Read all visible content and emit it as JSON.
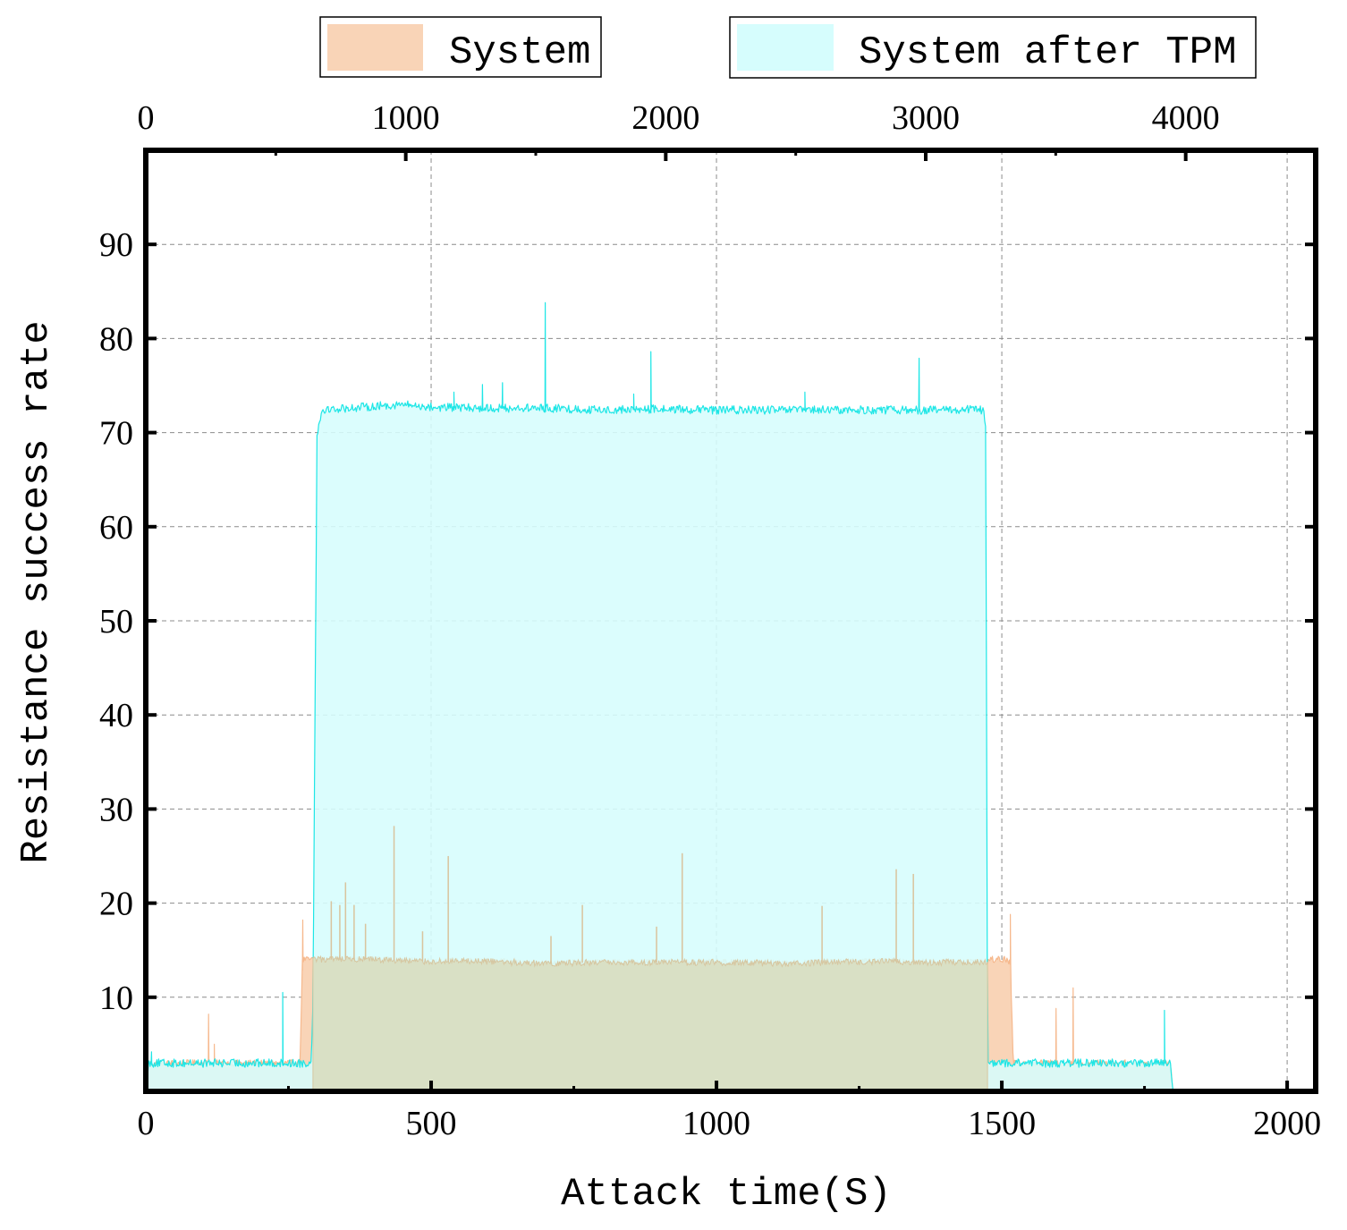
{
  "chart_data": {
    "type": "area",
    "title": "",
    "xlabel": "Attack time(S)",
    "ylabel": "Resistance success rate",
    "xlim": [
      0,
      2050
    ],
    "ylim": [
      0,
      100
    ],
    "x2lim": [
      0,
      4500
    ],
    "x_ticks": [
      0,
      500,
      1000,
      1500,
      2000
    ],
    "x2_ticks": [
      0,
      1000,
      2000,
      3000,
      4000
    ],
    "y_ticks": [
      10,
      20,
      30,
      40,
      50,
      60,
      70,
      80,
      90
    ],
    "x_tick_labels": [
      "0",
      "500",
      "1000",
      "1500",
      "2000"
    ],
    "x2_tick_labels": [
      "0",
      "1000",
      "2000",
      "3000",
      "4000"
    ],
    "y_tick_labels": [
      "10",
      "20",
      "30",
      "40",
      "50",
      "60",
      "70",
      "80",
      "90"
    ],
    "grid": true,
    "legend_position": "top, outside plot",
    "series": [
      {
        "name": "System",
        "line_color": "#f6b98e",
        "fill_color": "#f9d4b7",
        "x": [
          0,
          5,
          50,
          100,
          150,
          200,
          250,
          270,
          275,
          285,
          295,
          300,
          400,
          500,
          600,
          700,
          800,
          900,
          1000,
          1100,
          1200,
          1300,
          1400,
          1470,
          1475,
          1480,
          1490,
          1500,
          1510,
          1515,
          1520,
          1525,
          1530,
          1600,
          1700,
          1795,
          1800
        ],
        "y": [
          0,
          3,
          3,
          3,
          3,
          3,
          3,
          3,
          14,
          14,
          14,
          14,
          14,
          13.8,
          13.8,
          13.6,
          13.7,
          13.7,
          13.7,
          13.6,
          13.7,
          13.8,
          13.7,
          13.8,
          13.8,
          14,
          14,
          14,
          14,
          13.5,
          3,
          3,
          3,
          3,
          3,
          3,
          0
        ],
        "spikes": [
          [
            110,
            8.2
          ],
          [
            120,
            5
          ],
          [
            240,
            4
          ],
          [
            275,
            18.2
          ],
          [
            325,
            20.2
          ],
          [
            340,
            19.8
          ],
          [
            350,
            22.2
          ],
          [
            365,
            19.8
          ],
          [
            385,
            17.8
          ],
          [
            435,
            28.2
          ],
          [
            485,
            17
          ],
          [
            530,
            25
          ],
          [
            710,
            16.5
          ],
          [
            765,
            19.8
          ],
          [
            895,
            17.5
          ],
          [
            940,
            25.3
          ],
          [
            1185,
            19.7
          ],
          [
            1315,
            23.6
          ],
          [
            1345,
            23.1
          ],
          [
            1515,
            18.8
          ],
          [
            1595,
            8.8
          ],
          [
            1625,
            11
          ]
        ]
      },
      {
        "name": "System after TPM",
        "line_color": "#1ee6e6",
        "fill_color": "#d6fdfd",
        "x": [
          0,
          5,
          50,
          100,
          150,
          200,
          250,
          290,
          293,
          300,
          310,
          330,
          400,
          450,
          500,
          600,
          700,
          800,
          900,
          1000,
          1100,
          1200,
          1300,
          1400,
          1460,
          1468,
          1472,
          1475,
          1480,
          1500,
          1600,
          1700,
          1790,
          1795,
          1800
        ],
        "y": [
          0,
          3,
          3,
          3,
          3,
          3,
          3,
          3,
          10,
          70,
          72.5,
          72.5,
          72.8,
          73,
          72.7,
          72.6,
          72.6,
          72.4,
          72.5,
          72.4,
          72.4,
          72.4,
          72.4,
          72.4,
          72.5,
          72.3,
          70,
          3,
          3,
          3,
          3,
          3,
          3,
          3,
          0
        ],
        "spikes": [
          [
            10,
            4.2
          ],
          [
            240,
            10.5
          ],
          [
            540,
            74.3
          ],
          [
            590,
            75.1
          ],
          [
            625,
            75.3
          ],
          [
            700,
            83.8
          ],
          [
            855,
            74.1
          ],
          [
            885,
            78.6
          ],
          [
            1155,
            74.3
          ],
          [
            1355,
            77.9
          ],
          [
            1785,
            8.6
          ]
        ]
      }
    ]
  }
}
